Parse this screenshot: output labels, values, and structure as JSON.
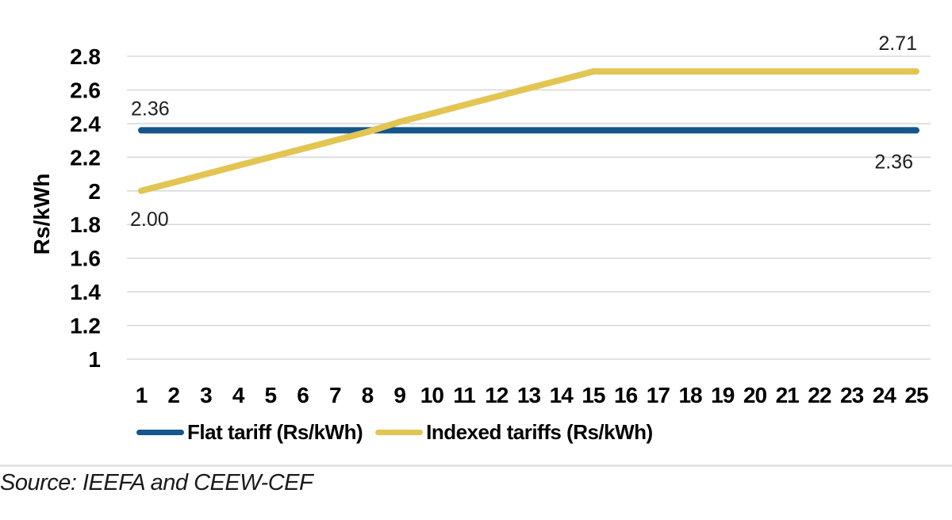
{
  "source_note": "Source: IEEFA and CEEW-CEF",
  "colors": {
    "flat_tariff": "#15568B",
    "indexed_tariff": "#E2C553",
    "gridline": "#D9D9D9",
    "separator": "#E2E2E2",
    "text": "#000000",
    "data_label": "#1F1F1F"
  },
  "chart_data": {
    "type": "line",
    "title": "",
    "xlabel": "",
    "ylabel": "Rs/kWh",
    "ylim": [
      1,
      2.8
    ],
    "y_ticks": [
      1,
      1.2,
      1.4,
      1.6,
      1.8,
      2,
      2.2,
      2.4,
      2.6,
      2.8
    ],
    "grid": "horizontal",
    "legend_position": "bottom",
    "x": [
      1,
      2,
      3,
      4,
      5,
      6,
      7,
      8,
      9,
      10,
      11,
      12,
      13,
      14,
      15,
      16,
      17,
      18,
      19,
      20,
      21,
      22,
      23,
      24,
      25
    ],
    "series": [
      {
        "name": "Flat tariff (Rs/kWh)",
        "key": "flat",
        "color": "#15568B",
        "values": [
          2.36,
          2.36,
          2.36,
          2.36,
          2.36,
          2.36,
          2.36,
          2.36,
          2.36,
          2.36,
          2.36,
          2.36,
          2.36,
          2.36,
          2.36,
          2.36,
          2.36,
          2.36,
          2.36,
          2.36,
          2.36,
          2.36,
          2.36,
          2.36,
          2.36
        ]
      },
      {
        "name": "Indexed tariffs (Rs/kWh)",
        "key": "indexed",
        "color": "#E2C553",
        "values": [
          2.0,
          2.05,
          2.1,
          2.15,
          2.2,
          2.25,
          2.3,
          2.35,
          2.41,
          2.46,
          2.51,
          2.56,
          2.61,
          2.66,
          2.71,
          2.71,
          2.71,
          2.71,
          2.71,
          2.71,
          2.71,
          2.71,
          2.71,
          2.71,
          2.71
        ]
      }
    ],
    "annotations": [
      {
        "text": "2.36",
        "series": "flat",
        "position": "start",
        "value": 2.36
      },
      {
        "text": "2.00",
        "series": "indexed",
        "position": "start",
        "value": 2.0
      },
      {
        "text": "2.71",
        "series": "indexed",
        "position": "end",
        "value": 2.71
      },
      {
        "text": "2.36",
        "series": "flat",
        "position": "end",
        "value": 2.36
      }
    ]
  }
}
